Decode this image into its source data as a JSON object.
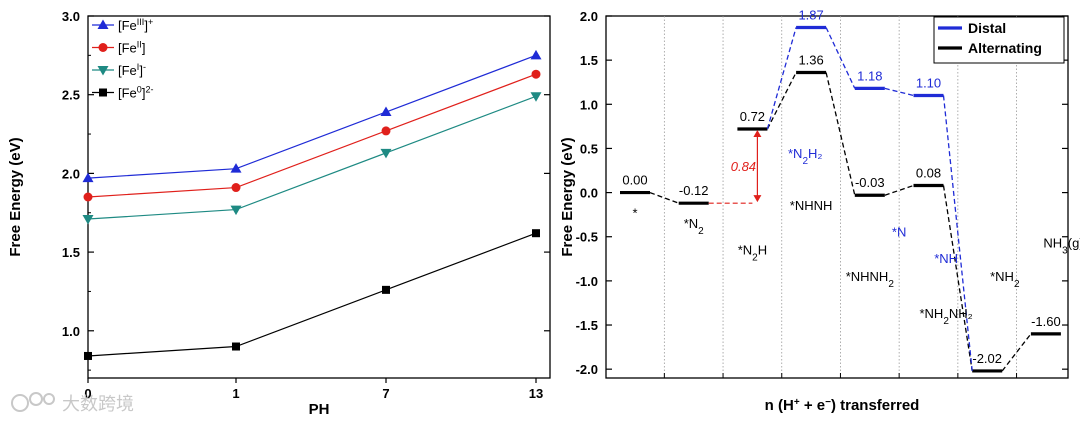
{
  "chart_data": [
    {
      "type": "line",
      "xlabel": "PH",
      "ylabel": "Free Energy (eV)",
      "categories": [
        "0",
        "1",
        "7",
        "13"
      ],
      "ylim": [
        0.7,
        3.0
      ],
      "yticks": [
        "1.0",
        "1.5",
        "2.0",
        "2.5",
        "3.0"
      ],
      "legend_position": "top-left",
      "series": [
        {
          "name": "[Fe(III)]+",
          "name_parts": [
            "[Fe",
            "III",
            "]",
            "+"
          ],
          "color": "#1f2bd6",
          "marker": "triangle-up",
          "values": [
            1.97,
            2.03,
            2.39,
            2.75
          ]
        },
        {
          "name": "[Fe(II)]",
          "name_parts": [
            "[Fe",
            "II",
            "]",
            ""
          ],
          "color": "#e0201b",
          "marker": "circle",
          "values": [
            1.85,
            1.91,
            2.27,
            2.63
          ]
        },
        {
          "name": "[Fe(I)]-",
          "name_parts": [
            "[Fe",
            "I",
            "]",
            "-"
          ],
          "color": "#1e8a83",
          "marker": "triangle-down",
          "values": [
            1.71,
            1.77,
            2.13,
            2.49
          ]
        },
        {
          "name": "[Fe(0)]2-",
          "name_parts": [
            "[Fe",
            "0",
            "]",
            "2-"
          ],
          "color": "#000000",
          "marker": "square",
          "values": [
            0.84,
            0.9,
            1.26,
            1.62
          ]
        }
      ]
    },
    {
      "type": "line",
      "xlabel": "n (H⁺ + e⁻) transferred",
      "ylabel": "Free Energy (eV)",
      "ylim": [
        -2.1,
        2.0
      ],
      "yticks": [
        "-2.0",
        "-1.5",
        "-1.0",
        "-0.5",
        "0.0",
        "0.5",
        "1.0",
        "1.5",
        "2.0"
      ],
      "legend_position": "top-right",
      "legend": [
        {
          "label": "Distal",
          "color": "#1f2bd6"
        },
        {
          "label": "Alternating",
          "color": "#000000"
        }
      ],
      "series": [
        {
          "name": "Distal",
          "color": "#1f2bd6",
          "levels": [
            {
              "step": 0,
              "value": 0.0
            },
            {
              "step": 1,
              "value": -0.12
            },
            {
              "step": 2,
              "value": 0.72
            },
            {
              "step": 3,
              "value": 1.87,
              "label": "1.87"
            },
            {
              "step": 4,
              "value": 1.18,
              "label": "1.18"
            },
            {
              "step": 5,
              "value": 1.1,
              "label": "1.10"
            },
            {
              "step": 6,
              "value": -2.02
            },
            {
              "step": 7,
              "value": -1.6
            }
          ]
        },
        {
          "name": "Alternating",
          "color": "#000000",
          "levels": [
            {
              "step": 0,
              "value": 0.0,
              "label": "0.00"
            },
            {
              "step": 1,
              "value": -0.12,
              "label": "-0.12"
            },
            {
              "step": 2,
              "value": 0.72,
              "label": "0.72"
            },
            {
              "step": 3,
              "value": 1.36,
              "label": "1.36"
            },
            {
              "step": 4,
              "value": -0.03,
              "label": "-0.03"
            },
            {
              "step": 5,
              "value": 0.08,
              "label": "0.08"
            },
            {
              "step": 6,
              "value": -2.02,
              "label": "-2.02"
            },
            {
              "step": 7,
              "value": -1.6,
              "label": "-1.60"
            }
          ]
        }
      ],
      "barrier": {
        "value": 0.84,
        "label": "0.84",
        "from": -0.12,
        "to": 0.72,
        "color": "#e0201b"
      },
      "intermediates": [
        {
          "base": "*",
          "sub": "",
          "rest": "",
          "color": "#000000",
          "step": 0,
          "y": -0.28
        },
        {
          "base": "*N",
          "sub": "2",
          "rest": "",
          "color": "#000000",
          "step": 1,
          "y": -0.4
        },
        {
          "base": "*N",
          "sub": "2",
          "rest": "H",
          "color": "#000000",
          "step": 2,
          "y": -0.7
        },
        {
          "base": "*N",
          "sub": "2",
          "rest": "H₂",
          "color": "#1f2bd6",
          "step": 3,
          "y": 0.39,
          "xoff": -0.1
        },
        {
          "base": "*NHNH",
          "sub": "",
          "rest": "",
          "color": "#000000",
          "step": 3,
          "y": -0.2
        },
        {
          "base": "*N",
          "sub": "",
          "rest": "",
          "color": "#1f2bd6",
          "step": 4.5,
          "y": -0.5
        },
        {
          "base": "*NHNH",
          "sub": "2",
          "rest": "",
          "color": "#000000",
          "step": 4,
          "y": -1.0
        },
        {
          "base": "*NH",
          "sub": "",
          "rest": "",
          "color": "#1f2bd6",
          "step": 5.3,
          "y": -0.8
        },
        {
          "base": "*NH",
          "sub": "2",
          "rest": "NH₂",
          "color": "#000000",
          "step": 5.3,
          "y": -1.42
        },
        {
          "base": "*NH",
          "sub": "2",
          "rest": "",
          "color": "#000000",
          "step": 6.3,
          "y": -1.0
        },
        {
          "base": "NH",
          "sub": "3",
          "rest": "(g)",
          "color": "#000000",
          "step": 7.3,
          "y": -0.62
        }
      ]
    }
  ],
  "watermark": "大数跨境"
}
